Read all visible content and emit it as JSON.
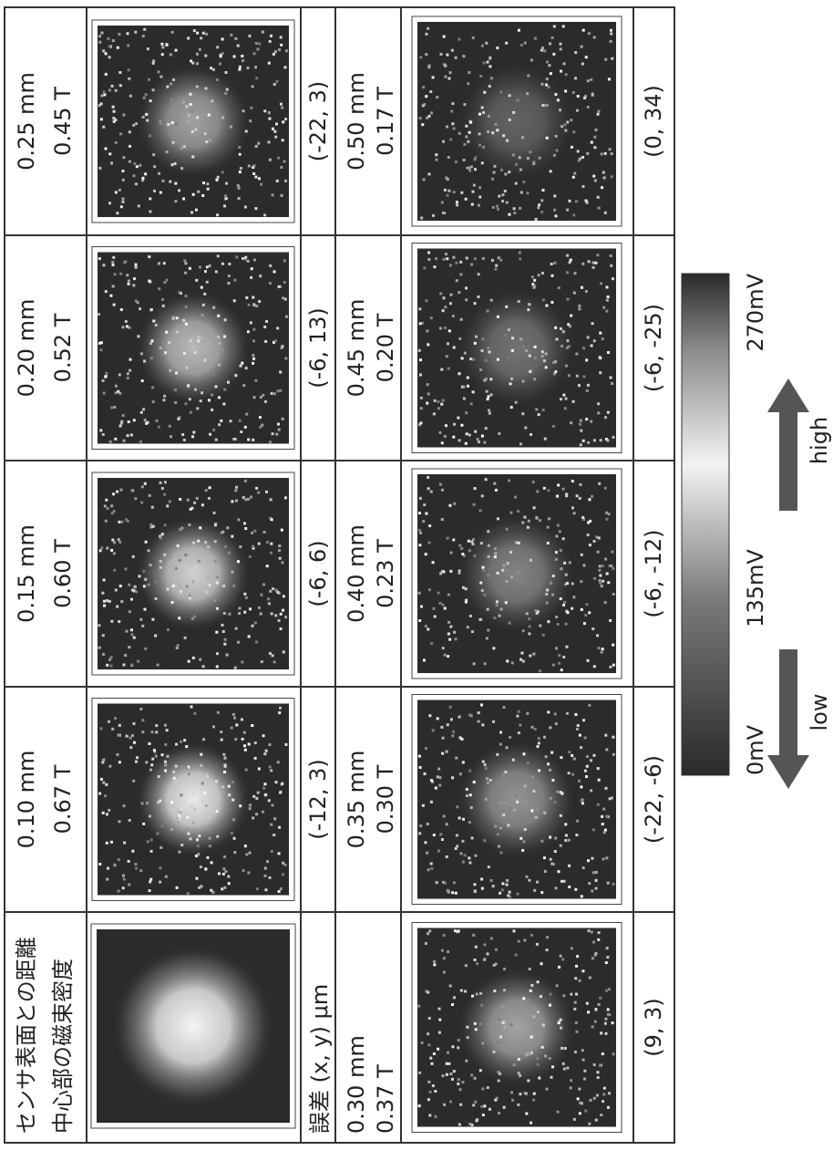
{
  "header": {
    "line1": "センサ表面との距離",
    "line2": "中心部の磁束密度",
    "error_label": "誤差 (x, y) μm"
  },
  "row1": [
    {
      "distance": "0.10 mm",
      "flux": "0.67 T",
      "error": "(-12, 3)"
    },
    {
      "distance": "0.15 mm",
      "flux": "0.60 T",
      "error": "(-6, 6)"
    },
    {
      "distance": "0.20 mm",
      "flux": "0.52 T",
      "error": "(-6, 13)"
    },
    {
      "distance": "0.25 mm",
      "flux": "0.45 T",
      "error": "(-22, 3)"
    }
  ],
  "row2": [
    {
      "distance": "0.30 mm",
      "flux": "0.37 T",
      "error": "(9, 3)"
    },
    {
      "distance": "0.35 mm",
      "flux": "0.30 T",
      "error": "(-22, -6)"
    },
    {
      "distance": "0.40 mm",
      "flux": "0.23 T",
      "error": "(-6, -12)"
    },
    {
      "distance": "0.45 mm",
      "flux": "0.20 T",
      "error": "(-6, -25)"
    },
    {
      "distance": "0.50 mm",
      "flux": "0.17 T",
      "error": "(0, 34)"
    }
  ],
  "colorbar": {
    "min_label": "0mV",
    "mid_label": "135mV",
    "max_label": "270mV",
    "low": "low",
    "high": "high"
  }
}
